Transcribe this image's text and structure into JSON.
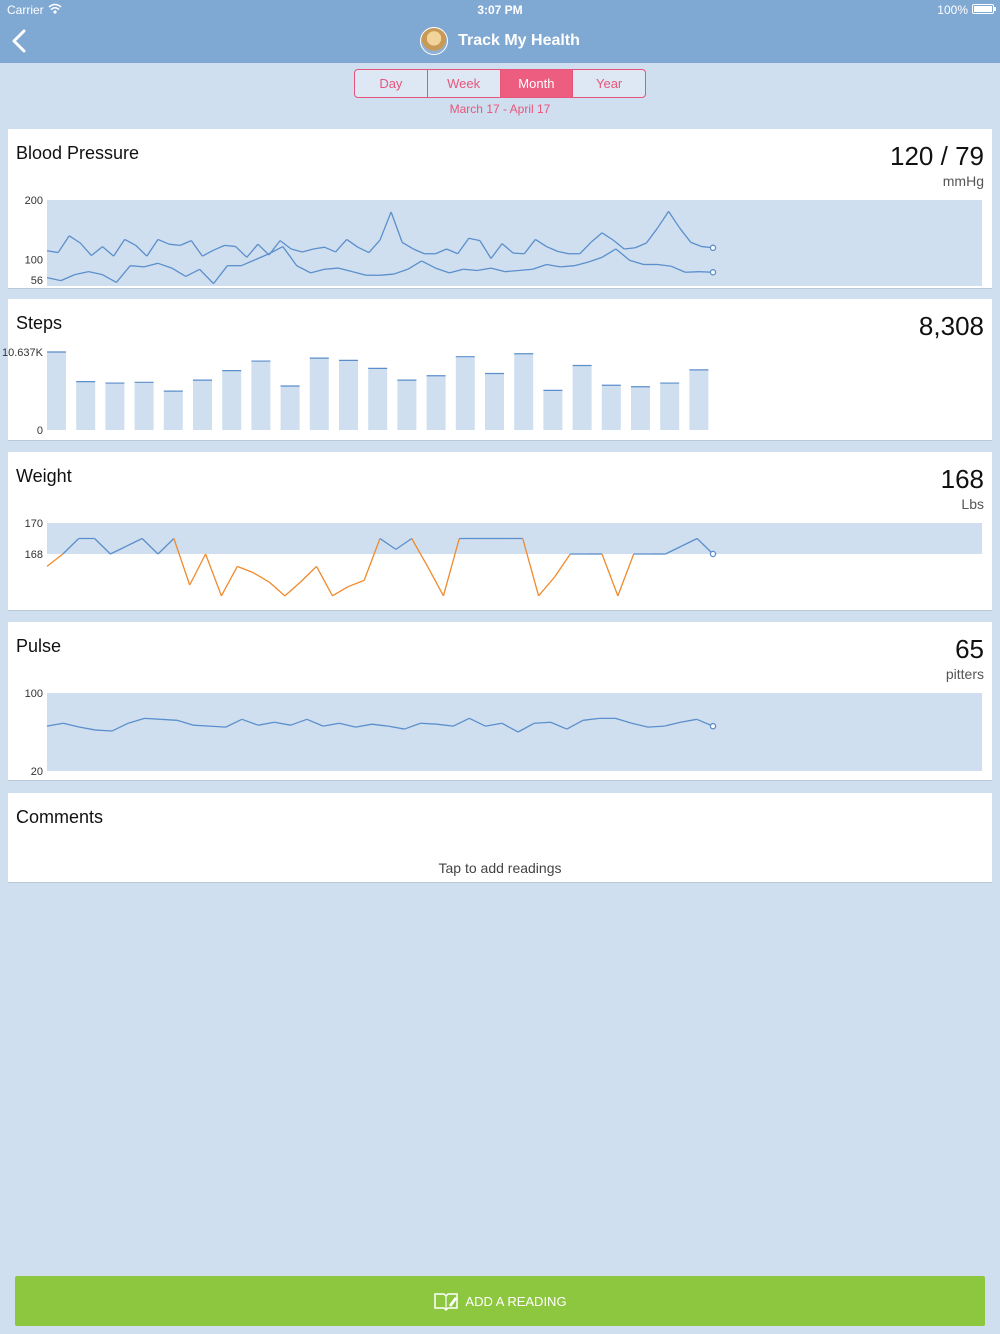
{
  "status_bar": {
    "carrier": "Carrier",
    "time": "3:07 PM",
    "battery": "100%"
  },
  "header": {
    "title": "Track My Health",
    "back_icon": "chevron-left-icon"
  },
  "range_tabs": [
    {
      "label": "Day",
      "active": false
    },
    {
      "label": "Week",
      "active": false
    },
    {
      "label": "Month",
      "active": true
    },
    {
      "label": "Year",
      "active": false
    }
  ],
  "date_range": "March 17 - April 17",
  "colors": {
    "header": "#7fa9d3",
    "accent": "#ec5d80",
    "line": "#5b8fcb",
    "below_range": "#f08a2c",
    "band": "#cfdff0",
    "add_button": "#8dc63f"
  },
  "blood_pressure": {
    "title": "Blood Pressure",
    "value": "120 / 79",
    "unit": "mmHg",
    "chart_data": {
      "type": "line",
      "yticks": [
        "200",
        "100",
        "56"
      ],
      "ylim": [
        56,
        200
      ],
      "band": [
        56,
        200
      ],
      "series": [
        {
          "values": [
            115,
            112,
            140,
            128,
            107,
            122,
            106,
            134,
            124,
            106,
            134,
            126,
            124,
            132,
            106,
            116,
            124,
            122,
            104,
            126,
            108,
            132,
            118,
            113,
            118,
            121,
            113,
            134,
            121,
            112,
            133,
            180,
            129,
            118,
            110,
            110,
            118,
            110,
            136,
            132,
            102,
            127,
            111,
            110,
            134,
            122,
            114,
            110,
            110,
            129,
            145,
            133,
            118,
            120,
            128,
            153,
            181,
            153,
            129,
            122,
            120
          ]
        },
        {
          "values": [
            70,
            65,
            75,
            80,
            75,
            62,
            90,
            88,
            94,
            86,
            72,
            84,
            60,
            90,
            90,
            100,
            110,
            122,
            90,
            78,
            84,
            86,
            80,
            74,
            74,
            76,
            84,
            98,
            86,
            78,
            84,
            82,
            86,
            80,
            82,
            84,
            92,
            88,
            90,
            96,
            104,
            118,
            99,
            92,
            92,
            89,
            79,
            80,
            79
          ]
        }
      ]
    }
  },
  "steps": {
    "title": "Steps",
    "value": "8,308",
    "chart_data": {
      "type": "bar",
      "yticks": [
        "10.637K",
        "0"
      ],
      "ylim": [
        0,
        10637
      ],
      "values": [
        10637,
        6600,
        6400,
        6500,
        5300,
        6800,
        8100,
        9400,
        6000,
        9800,
        9500,
        8400,
        6800,
        7400,
        10000,
        7700,
        10400,
        5400,
        8800,
        6100,
        5900,
        6400,
        8200
      ]
    }
  },
  "weight": {
    "title": "Weight",
    "value": "168",
    "unit": "Lbs",
    "chart_data": {
      "type": "line",
      "yticks": [
        "170",
        "168"
      ],
      "band": [
        168,
        170
      ],
      "values": [
        167.2,
        168,
        169,
        169,
        168,
        168.5,
        169,
        168,
        169,
        166,
        168,
        165.3,
        167.2,
        166.8,
        166.2,
        165.3,
        166.2,
        167.2,
        165.3,
        165.9,
        166.3,
        169,
        168.3,
        169,
        167.2,
        165.3,
        169,
        169,
        169,
        169,
        169,
        165.3,
        166.5,
        168,
        168,
        168,
        165.3,
        168,
        168,
        168,
        168.5,
        169,
        168
      ]
    }
  },
  "pulse": {
    "title": "Pulse",
    "value": "65",
    "unit": "pitters",
    "chart_data": {
      "type": "line",
      "yticks": [
        "100",
        "20"
      ],
      "ylim": [
        20,
        100
      ],
      "values": [
        66,
        69,
        65,
        62,
        61,
        69,
        74,
        73,
        72,
        67,
        66,
        65,
        73,
        67,
        70,
        67,
        73,
        66,
        69,
        65,
        68,
        66,
        63,
        69,
        68,
        66,
        74,
        66,
        69,
        60,
        69,
        70,
        63,
        72,
        74,
        74,
        69,
        65,
        66,
        70,
        73,
        66
      ]
    }
  },
  "comments": {
    "title": "Comments",
    "hint": "Tap to add readings"
  },
  "add_button": {
    "label": "ADD A READING",
    "icon": "notebook-pen-icon"
  }
}
